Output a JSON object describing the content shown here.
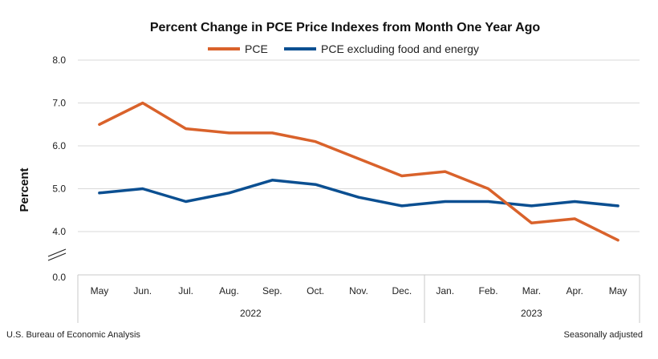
{
  "chart_data": {
    "type": "line",
    "title": "Percent Change in PCE Price Indexes from Month One Year Ago",
    "ylabel": "Percent",
    "xlabel": "",
    "categories": [
      "May",
      "Jun.",
      "Jul.",
      "Aug.",
      "Sep.",
      "Oct.",
      "Nov.",
      "Dec.",
      "Jan.",
      "Feb.",
      "Mar.",
      "Apr.",
      "May"
    ],
    "year_groups": [
      {
        "label": "2022",
        "start": 0,
        "end": 7
      },
      {
        "label": "2023",
        "start": 8,
        "end": 12
      }
    ],
    "series": [
      {
        "name": "PCE",
        "color": "#d9622b",
        "values": [
          6.5,
          7.0,
          6.4,
          6.3,
          6.3,
          6.1,
          5.7,
          5.3,
          5.4,
          5.0,
          4.2,
          4.3,
          3.8
        ]
      },
      {
        "name": "PCE excluding food and energy",
        "color": "#0b4f91",
        "values": [
          4.9,
          5.0,
          4.7,
          4.9,
          5.2,
          5.1,
          4.8,
          4.6,
          4.7,
          4.7,
          4.6,
          4.7,
          4.6
        ]
      }
    ],
    "ylim": [
      3.5,
      8.0
    ],
    "yticks": [
      "8.0",
      "7.0",
      "6.0",
      "5.0",
      "4.0"
    ],
    "ybase_label": "0.0",
    "ytick_values": [
      8.0,
      7.0,
      6.0,
      5.0,
      4.0
    ],
    "axis_break": true,
    "grid": true,
    "legend_position": "top-center"
  },
  "footer": {
    "source": "U.S. Bureau of Economic Analysis",
    "note": "Seasonally adjusted"
  }
}
